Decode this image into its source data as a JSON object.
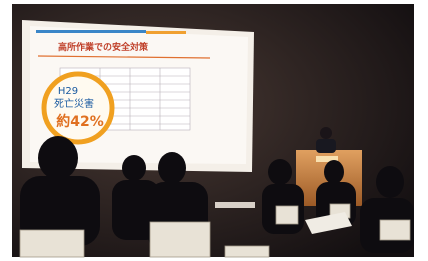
{
  "slide": {
    "title": "高所作業での安全対策",
    "circle_year": "H29",
    "circle_label": "死亡災害",
    "circle_share": "約42%"
  }
}
